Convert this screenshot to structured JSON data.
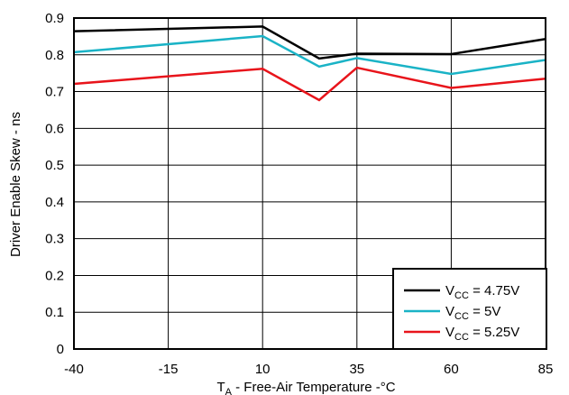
{
  "chart_data": {
    "type": "line",
    "title": "",
    "xlabel": {
      "main": "T",
      "sub": "A",
      "rest": " - Free-Air Temperature -°C"
    },
    "ylabel": "Driver Enable Skew - ns",
    "xlim": [
      -40,
      85
    ],
    "ylim": [
      0,
      0.9
    ],
    "xticks": [
      -40,
      -15,
      10,
      35,
      60,
      85
    ],
    "yticks": [
      0,
      0.1,
      0.2,
      0.3,
      0.4,
      0.5,
      0.6,
      0.7,
      0.8,
      0.9
    ],
    "xtick_labels": [
      "-40",
      "-15",
      "10",
      "35",
      "60",
      "85"
    ],
    "ytick_labels": [
      "0",
      "0.1",
      "0.2",
      "0.3",
      "0.4",
      "0.5",
      "0.6",
      "0.7",
      "0.8",
      "0.9"
    ],
    "grid": true,
    "legend_position": "bottom-right",
    "series": [
      {
        "name": {
          "main": "V",
          "sub": "CC",
          "rest": " = 4.75V"
        },
        "color": "#000000",
        "points": [
          [
            -40,
            0.864
          ],
          [
            10,
            0.877
          ],
          [
            25,
            0.79
          ],
          [
            35,
            0.803
          ],
          [
            60,
            0.802
          ],
          [
            85,
            0.843
          ]
        ]
      },
      {
        "name": {
          "main": "V",
          "sub": "CC",
          "rest": " = 5V"
        },
        "color": "#1ab3c6",
        "points": [
          [
            -40,
            0.807
          ],
          [
            10,
            0.851
          ],
          [
            25,
            0.768
          ],
          [
            35,
            0.791
          ],
          [
            60,
            0.748
          ],
          [
            85,
            0.786
          ]
        ]
      },
      {
        "name": {
          "main": "V",
          "sub": "CC",
          "rest": " = 5.25V"
        },
        "color": "#e8141b",
        "points": [
          [
            -40,
            0.721
          ],
          [
            10,
            0.762
          ],
          [
            25,
            0.677
          ],
          [
            35,
            0.765
          ],
          [
            60,
            0.71
          ],
          [
            85,
            0.735
          ]
        ]
      }
    ]
  }
}
